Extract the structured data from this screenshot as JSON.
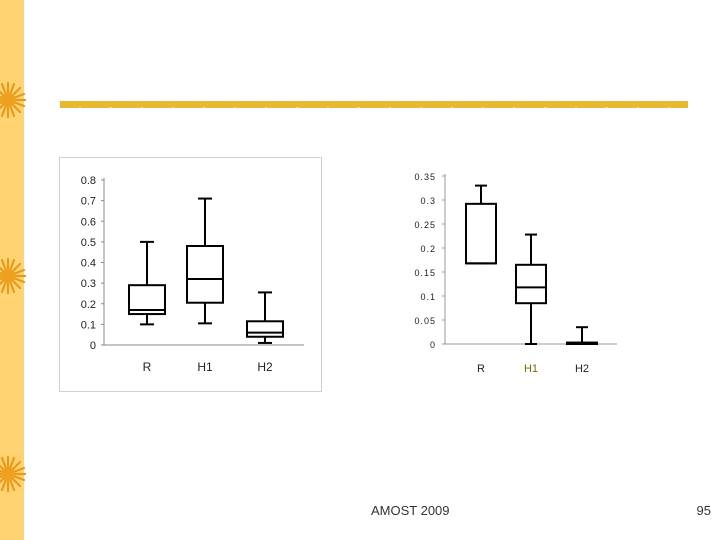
{
  "slide": {
    "footer_text": "AMOST 2009",
    "page_number": "95",
    "accent_color": "#e8b82e",
    "sidebar_color": "#ffd272"
  },
  "chart_data": [
    {
      "type": "box",
      "title": "",
      "xlabel": "",
      "ylabel": "",
      "categories": [
        "R",
        "H1",
        "H2"
      ],
      "ylim": [
        0,
        0.8
      ],
      "yticks": [
        0,
        0.1,
        0.2,
        0.3,
        0.4,
        0.5,
        0.6,
        0.7,
        0.8
      ],
      "ytick_labels": [
        "0",
        "0.1",
        "0.2",
        "0.3",
        "0.4",
        "0.5",
        "0.6",
        "0.7",
        "0.8"
      ],
      "boxes": [
        {
          "name": "R",
          "min": 0.1,
          "q1": 0.15,
          "median": 0.17,
          "q3": 0.29,
          "max": 0.5
        },
        {
          "name": "H1",
          "min": 0.105,
          "q1": 0.205,
          "median": 0.32,
          "q3": 0.48,
          "max": 0.71
        },
        {
          "name": "H2",
          "min": 0.01,
          "q1": 0.04,
          "median": 0.06,
          "q3": 0.115,
          "max": 0.255
        }
      ]
    },
    {
      "type": "box",
      "title": "",
      "xlabel": "",
      "ylabel": "",
      "categories": [
        "R",
        "H1",
        "H2"
      ],
      "ylim": [
        0,
        0.35
      ],
      "yticks": [
        0,
        0.05,
        0.1,
        0.15,
        0.2,
        0.25,
        0.3,
        0.35
      ],
      "ytick_labels": [
        "0",
        "0.05",
        "0.1",
        "0.15",
        "0.2",
        "0.25",
        "0.3",
        "0.35"
      ],
      "boxes": [
        {
          "name": "R",
          "min": 0.168,
          "q1": 0.168,
          "median": 0.168,
          "q3": 0.292,
          "max": 0.33
        },
        {
          "name": "H1",
          "min": 0.0,
          "q1": 0.085,
          "median": 0.118,
          "q3": 0.165,
          "max": 0.228
        },
        {
          "name": "H2",
          "min": 0.0,
          "q1": 0.0,
          "median": 0.0,
          "q3": 0.003,
          "max": 0.035
        }
      ]
    }
  ]
}
